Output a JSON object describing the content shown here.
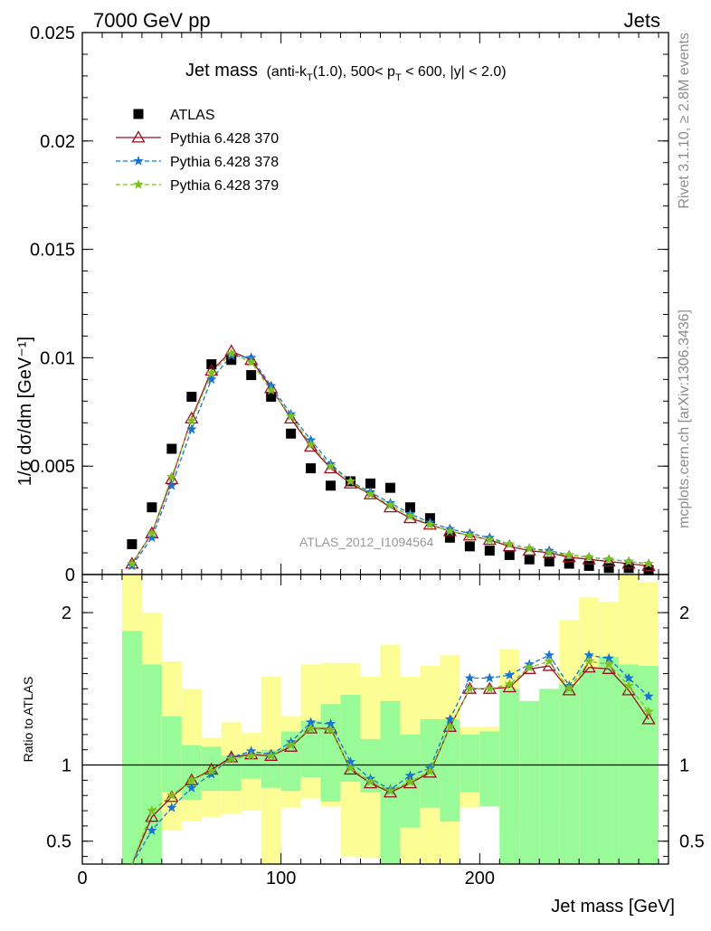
{
  "header": {
    "left": "7000 GeV pp",
    "right": "Jets"
  },
  "side": {
    "rivet": "Rivet 3.1.10, ≥ 2.8M events",
    "mcplots": "mcplots.cern.ch [arXiv:1306.3436]"
  },
  "watermark": "ATLAS_2012_I1094564",
  "title": {
    "main": "Jet mass",
    "sub": "(anti-k",
    "sub_T": "T",
    "sub_mid": "(1.0), 500< p",
    "sub_pT": "T",
    "sub_end": " < 600, |y| < 2.0)"
  },
  "legend": [
    {
      "label": "ATLAS",
      "color": "#000000",
      "marker": "square"
    },
    {
      "label": "Pythia 6.428 370",
      "color": "#9a1020",
      "marker": "triangle"
    },
    {
      "label": "Pythia 6.428 378",
      "color": "#1874cd",
      "marker": "star"
    },
    {
      "label": "Pythia 6.428 379",
      "color": "#7cc11e",
      "marker": "star"
    }
  ],
  "chart_data": [
    {
      "type": "scatter",
      "ylabel": "1/σ dσ/dm [GeV⁻¹]",
      "xlim": [
        0,
        295
      ],
      "ylim": [
        0,
        0.025
      ],
      "yticks": [
        0,
        0.005,
        0.01,
        0.015,
        0.02,
        0.025
      ],
      "yticklabels": [
        "0",
        "0.005",
        "0.01",
        "0.015",
        "0.02",
        "0.025"
      ],
      "x": [
        25,
        35,
        45,
        55,
        65,
        75,
        85,
        95,
        105,
        115,
        125,
        135,
        145,
        155,
        165,
        175,
        185,
        195,
        205,
        215,
        225,
        235,
        245,
        255,
        265,
        275,
        285
      ],
      "series": [
        {
          "name": "ATLAS",
          "values": [
            0.0014,
            0.0031,
            0.0058,
            0.0082,
            0.0097,
            0.0099,
            0.0092,
            0.0082,
            0.0065,
            0.0049,
            0.0041,
            0.0043,
            0.0042,
            0.004,
            0.0031,
            0.0026,
            0.0017,
            0.0013,
            0.0011,
            0.0009,
            0.0007,
            0.0006,
            0.0005,
            0.0004,
            0.0003,
            0.0003,
            0.0002
          ]
        },
        {
          "name": "Pythia 6.428 370",
          "values": [
            0.0005,
            0.0019,
            0.0044,
            0.0072,
            0.0094,
            0.0103,
            0.0099,
            0.0086,
            0.0072,
            0.0059,
            0.0049,
            0.0042,
            0.0037,
            0.0031,
            0.0026,
            0.0023,
            0.002,
            0.0018,
            0.0016,
            0.0013,
            0.0011,
            0.001,
            0.0008,
            0.0007,
            0.0006,
            0.0005,
            0.0004
          ]
        },
        {
          "name": "Pythia 6.428 378",
          "values": [
            0.0004,
            0.0017,
            0.0041,
            0.0067,
            0.009,
            0.0101,
            0.01,
            0.0087,
            0.0074,
            0.0062,
            0.0051,
            0.0043,
            0.0038,
            0.0033,
            0.0028,
            0.0024,
            0.0021,
            0.0019,
            0.0017,
            0.0014,
            0.0012,
            0.0011,
            0.0009,
            0.0008,
            0.0007,
            0.0006,
            0.0005
          ]
        },
        {
          "name": "Pythia 6.428 379",
          "values": [
            0.0005,
            0.0019,
            0.0045,
            0.0071,
            0.0093,
            0.0102,
            0.0098,
            0.0085,
            0.0073,
            0.006,
            0.005,
            0.0043,
            0.0037,
            0.0032,
            0.0027,
            0.0023,
            0.002,
            0.0018,
            0.0016,
            0.0014,
            0.0012,
            0.001,
            0.0009,
            0.0008,
            0.0007,
            0.0006,
            0.0005
          ]
        }
      ]
    },
    {
      "type": "line",
      "xlabel": "Jet mass [GeV]",
      "ylabel": "Ratio to ATLAS",
      "xlim": [
        0,
        295
      ],
      "ylim": [
        0.35,
        2.25
      ],
      "xticks": [
        0,
        100,
        200
      ],
      "xticklabels": [
        "0",
        "100",
        "200"
      ],
      "yticks": [
        0.5,
        1,
        2
      ],
      "yticklabels": [
        "0.5",
        "1",
        "2"
      ],
      "reference": 1,
      "bins": [
        [
          20,
          30
        ],
        [
          30,
          40
        ],
        [
          40,
          50
        ],
        [
          50,
          60
        ],
        [
          60,
          70
        ],
        [
          70,
          80
        ],
        [
          80,
          90
        ],
        [
          90,
          100
        ],
        [
          100,
          110
        ],
        [
          110,
          120
        ],
        [
          120,
          130
        ],
        [
          130,
          140
        ],
        [
          140,
          150
        ],
        [
          150,
          160
        ],
        [
          160,
          170
        ],
        [
          170,
          180
        ],
        [
          180,
          190
        ],
        [
          190,
          200
        ],
        [
          200,
          210
        ],
        [
          210,
          220
        ],
        [
          220,
          230
        ],
        [
          230,
          240
        ],
        [
          240,
          250
        ],
        [
          250,
          260
        ],
        [
          260,
          270
        ],
        [
          270,
          280
        ],
        [
          280,
          290
        ]
      ],
      "band_total": {
        "low": [
          0.35,
          0.35,
          0.57,
          0.63,
          0.66,
          0.68,
          0.7,
          0.35,
          0.72,
          0.78,
          0.73,
          0.4,
          0.39,
          0.4,
          0.35,
          0.35,
          0.35,
          0.72,
          0.81,
          0.56,
          0.73,
          0.73,
          0.57,
          0.42,
          0.38,
          0.65,
          0.41
        ],
        "high": [
          2.25,
          2.0,
          1.68,
          1.5,
          1.18,
          1.28,
          1.21,
          1.58,
          1.32,
          1.66,
          1.67,
          1.67,
          1.58,
          1.79,
          1.58,
          1.65,
          1.72,
          1.25,
          1.25,
          1.76,
          1.28,
          1.48,
          1.95,
          2.1,
          2.07,
          2.25,
          2.2
        ]
      },
      "band_stat": {
        "low": [
          0.35,
          0.35,
          0.82,
          0.77,
          0.83,
          0.83,
          0.91,
          0.85,
          0.83,
          0.92,
          0.76,
          0.89,
          0.82,
          0.35,
          0.59,
          0.72,
          0.63,
          0.82,
          0.73,
          0.35,
          0.35,
          0.35,
          0.35,
          0.35,
          0.35,
          0.35,
          0.35
        ],
        "high": [
          1.88,
          1.66,
          1.32,
          1.13,
          1.12,
          1.06,
          1.08,
          1.1,
          1.22,
          1.29,
          1.4,
          1.46,
          1.17,
          1.42,
          1.2,
          1.3,
          1.3,
          1.2,
          1.22,
          1.5,
          1.42,
          1.5,
          1.53,
          1.63,
          1.71,
          1.66,
          1.65
        ]
      },
      "x": [
        25,
        35,
        45,
        55,
        65,
        75,
        85,
        95,
        105,
        115,
        125,
        135,
        145,
        155,
        165,
        175,
        185,
        195,
        205,
        215,
        225,
        235,
        245,
        255,
        265,
        275,
        285
      ],
      "series": [
        {
          "name": "Pythia 6.428 370",
          "values": [
            0.33,
            0.66,
            0.79,
            0.9,
            0.97,
            1.05,
            1.07,
            1.06,
            1.12,
            1.24,
            1.24,
            0.97,
            0.88,
            0.82,
            0.88,
            0.95,
            1.25,
            1.5,
            1.5,
            1.51,
            1.63,
            1.65,
            1.49,
            1.64,
            1.63,
            1.49,
            1.3
          ]
        },
        {
          "name": "Pythia 6.428 378",
          "values": [
            0.28,
            0.57,
            0.72,
            0.85,
            0.94,
            1.05,
            1.09,
            1.07,
            1.15,
            1.28,
            1.27,
            1.02,
            0.91,
            0.84,
            0.93,
            0.98,
            1.3,
            1.57,
            1.57,
            1.59,
            1.66,
            1.72,
            1.52,
            1.72,
            1.7,
            1.57,
            1.45
          ]
        },
        {
          "name": "Pythia 6.428 379",
          "values": [
            0.32,
            0.7,
            0.8,
            0.9,
            0.96,
            1.04,
            1.06,
            1.06,
            1.13,
            1.24,
            1.23,
            0.98,
            0.89,
            0.83,
            0.89,
            0.96,
            1.25,
            1.5,
            1.5,
            1.53,
            1.64,
            1.68,
            1.5,
            1.68,
            1.66,
            1.52,
            1.35
          ]
        }
      ]
    }
  ]
}
